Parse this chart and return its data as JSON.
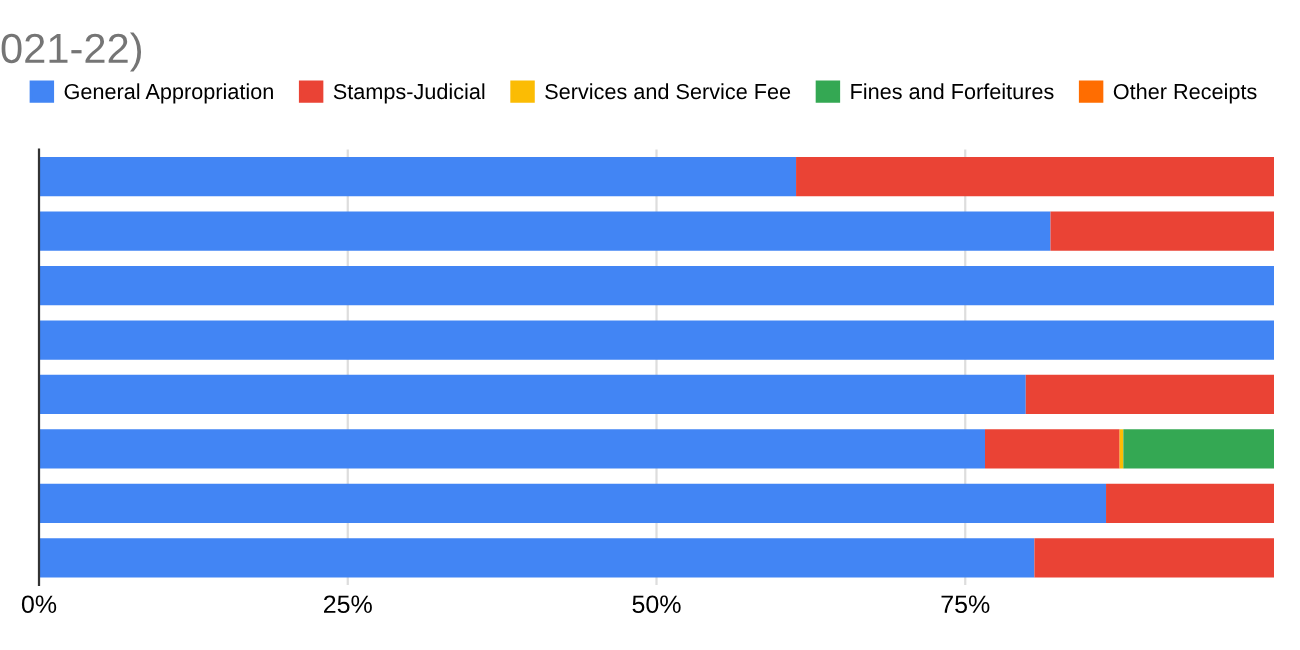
{
  "chart_data": {
    "type": "bar",
    "orientation": "horizontal",
    "stacked": true,
    "title": "021-22)",
    "categories": [
      null,
      null,
      null,
      null,
      null,
      null,
      null,
      null
    ],
    "series": [
      {
        "name": "General Appropriation",
        "color": "#4285f4",
        "values": [
          61.3,
          81.9,
          100,
          100,
          79.9,
          76.6,
          86.4,
          80.6
        ]
      },
      {
        "name": "Stamps-Judicial",
        "color": "#ea4335",
        "values": [
          38.7,
          18.1,
          0,
          0,
          20.1,
          10.9,
          13.6,
          19.4
        ]
      },
      {
        "name": "Services and Service Fee",
        "color": "#fbbc04",
        "values": [
          0,
          0,
          0,
          0,
          0,
          0.3,
          0,
          0
        ]
      },
      {
        "name": "Fines and Forfeitures",
        "color": "#34a853",
        "values": [
          0,
          0,
          0,
          0,
          0,
          12.2,
          0,
          0
        ]
      },
      {
        "name": "Other Receipts",
        "color": "#ff6d01",
        "values": [
          0,
          0,
          0,
          0,
          0,
          0,
          0,
          0
        ]
      }
    ],
    "xlim": [
      0,
      100
    ],
    "xticks": [
      {
        "value": 0,
        "label": "0%"
      },
      {
        "value": 25,
        "label": "25%"
      },
      {
        "value": 50,
        "label": "50%"
      },
      {
        "value": 75,
        "label": "75%"
      }
    ],
    "grid": "x",
    "legend": "top"
  }
}
